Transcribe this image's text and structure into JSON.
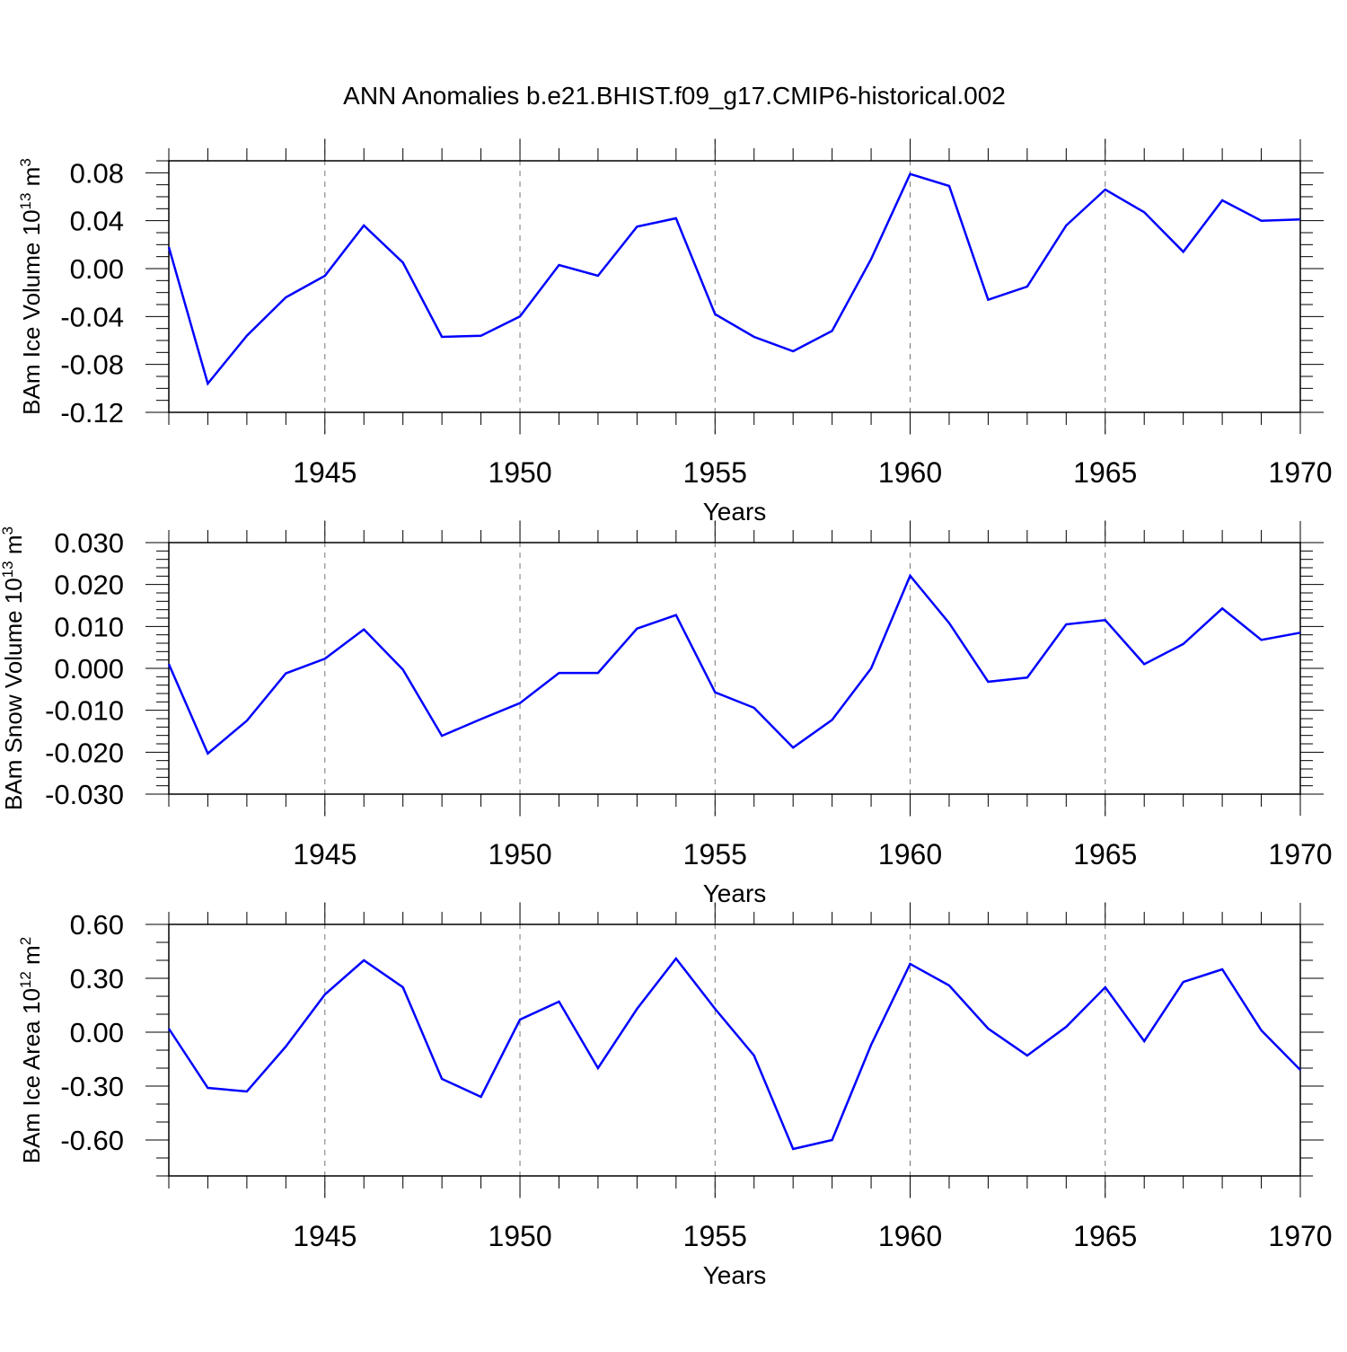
{
  "title": "ANN Anomalies b.e21.BHIST.f09_g17.CMIP6-historical.002",
  "line_color": "#0000ff",
  "chart_data": [
    {
      "type": "line",
      "ylabel_main": "BAm Ice Volume 10",
      "ylabel_exp": "13",
      "ylabel_unit": " m",
      "ylabel_unit_exp": "3",
      "xlabel": "Years",
      "xlim": [
        1941,
        1970
      ],
      "ylim": [
        -0.12,
        0.09
      ],
      "yticks": [
        -0.12,
        -0.08,
        -0.04,
        0.0,
        0.04,
        0.08
      ],
      "ytick_labels": [
        "-0.12",
        "-0.08",
        "-0.04",
        "0.00",
        "0.04",
        "0.08"
      ],
      "yminor": [
        -0.11,
        -0.1,
        -0.09,
        -0.07,
        -0.06,
        -0.05,
        -0.03,
        -0.02,
        -0.01,
        0.01,
        0.02,
        0.03,
        0.05,
        0.06,
        0.07,
        0.09
      ],
      "xticks": [
        1945,
        1950,
        1955,
        1960,
        1965,
        1970
      ],
      "xtick_labels": [
        "1945",
        "1950",
        "1955",
        "1960",
        "1965",
        "1970"
      ],
      "grid_x": [
        1945,
        1950,
        1955,
        1960,
        1965
      ],
      "x": [
        1941,
        1942,
        1943,
        1944,
        1945,
        1946,
        1947,
        1948,
        1949,
        1950,
        1951,
        1952,
        1953,
        1954,
        1955,
        1956,
        1957,
        1958,
        1959,
        1960,
        1961,
        1962,
        1963,
        1964,
        1965,
        1966,
        1967,
        1968,
        1969,
        1970
      ],
      "series": [
        {
          "values": [
            0.018,
            -0.096,
            -0.056,
            -0.024,
            -0.006,
            0.036,
            0.005,
            -0.057,
            -0.056,
            -0.04,
            0.003,
            -0.006,
            0.035,
            0.042,
            -0.038,
            -0.057,
            -0.069,
            -0.052,
            0.008,
            0.079,
            0.069,
            -0.026,
            -0.015,
            0.036,
            0.066,
            0.047,
            0.014,
            0.057,
            0.04,
            0.041
          ]
        }
      ]
    },
    {
      "type": "line",
      "ylabel_main": "BAm Snow Volume 10",
      "ylabel_exp": "13",
      "ylabel_unit": " m",
      "ylabel_unit_exp": "3",
      "xlabel": "Years",
      "xlim": [
        1941,
        1970
      ],
      "ylim": [
        -0.03,
        0.03
      ],
      "yticks": [
        -0.03,
        -0.02,
        -0.01,
        0.0,
        0.01,
        0.02,
        0.03
      ],
      "ytick_labels": [
        "-0.030",
        "-0.020",
        "-0.010",
        "0.000",
        "0.010",
        "0.020",
        "0.030"
      ],
      "yminor": [
        -0.028,
        -0.026,
        -0.024,
        -0.022,
        -0.018,
        -0.016,
        -0.014,
        -0.012,
        -0.008,
        -0.006,
        -0.004,
        -0.002,
        0.002,
        0.004,
        0.006,
        0.008,
        0.012,
        0.014,
        0.016,
        0.018,
        0.022,
        0.024,
        0.026,
        0.028
      ],
      "xticks": [
        1945,
        1950,
        1955,
        1960,
        1965,
        1970
      ],
      "xtick_labels": [
        "1945",
        "1950",
        "1955",
        "1960",
        "1965",
        "1970"
      ],
      "grid_x": [
        1945,
        1950,
        1955,
        1960,
        1965
      ],
      "x": [
        1941,
        1942,
        1943,
        1944,
        1945,
        1946,
        1947,
        1948,
        1949,
        1950,
        1951,
        1952,
        1953,
        1954,
        1955,
        1956,
        1957,
        1958,
        1959,
        1960,
        1961,
        1962,
        1963,
        1964,
        1965,
        1966,
        1967,
        1968,
        1969,
        1970
      ],
      "series": [
        {
          "values": [
            0.001,
            -0.0203,
            -0.0125,
            -0.0012,
            0.0023,
            0.0093,
            -0.0003,
            -0.0161,
            -0.0121,
            -0.0083,
            -0.0011,
            -0.0011,
            0.0095,
            0.0127,
            -0.0057,
            -0.0094,
            -0.0189,
            -0.0123,
            0.0,
            0.0221,
            0.0108,
            -0.0032,
            -0.0022,
            0.0105,
            0.0115,
            0.001,
            0.0058,
            0.0143,
            0.0068,
            0.0085
          ]
        }
      ]
    },
    {
      "type": "line",
      "ylabel_main": "BAm Ice Area 10",
      "ylabel_exp": "12",
      "ylabel_unit": " m",
      "ylabel_unit_exp": "2",
      "xlabel": "Years",
      "xlim": [
        1941,
        1970
      ],
      "ylim": [
        -0.8,
        0.6
      ],
      "yticks": [
        -0.6,
        -0.3,
        0.0,
        0.3,
        0.6
      ],
      "ytick_labels": [
        "-0.60",
        "-0.30",
        "0.00",
        "0.30",
        "0.60"
      ],
      "yminor": [
        -0.8,
        -0.7,
        -0.5,
        -0.4,
        -0.2,
        -0.1,
        0.1,
        0.2,
        0.4,
        0.5
      ],
      "xticks": [
        1945,
        1950,
        1955,
        1960,
        1965,
        1970
      ],
      "xtick_labels": [
        "1945",
        "1950",
        "1955",
        "1960",
        "1965",
        "1970"
      ],
      "grid_x": [
        1945,
        1950,
        1955,
        1960,
        1965
      ],
      "x": [
        1941,
        1942,
        1943,
        1944,
        1945,
        1946,
        1947,
        1948,
        1949,
        1950,
        1951,
        1952,
        1953,
        1954,
        1955,
        1956,
        1957,
        1958,
        1959,
        1960,
        1961,
        1962,
        1963,
        1964,
        1965,
        1966,
        1967,
        1968,
        1969,
        1970
      ],
      "series": [
        {
          "values": [
            0.02,
            -0.31,
            -0.33,
            -0.08,
            0.21,
            0.4,
            0.25,
            -0.26,
            -0.36,
            0.07,
            0.17,
            -0.2,
            0.13,
            0.41,
            0.13,
            -0.13,
            -0.65,
            -0.6,
            -0.07,
            0.38,
            0.26,
            0.02,
            -0.13,
            0.03,
            0.25,
            -0.05,
            0.28,
            0.35,
            0.01,
            -0.21
          ]
        }
      ]
    }
  ]
}
